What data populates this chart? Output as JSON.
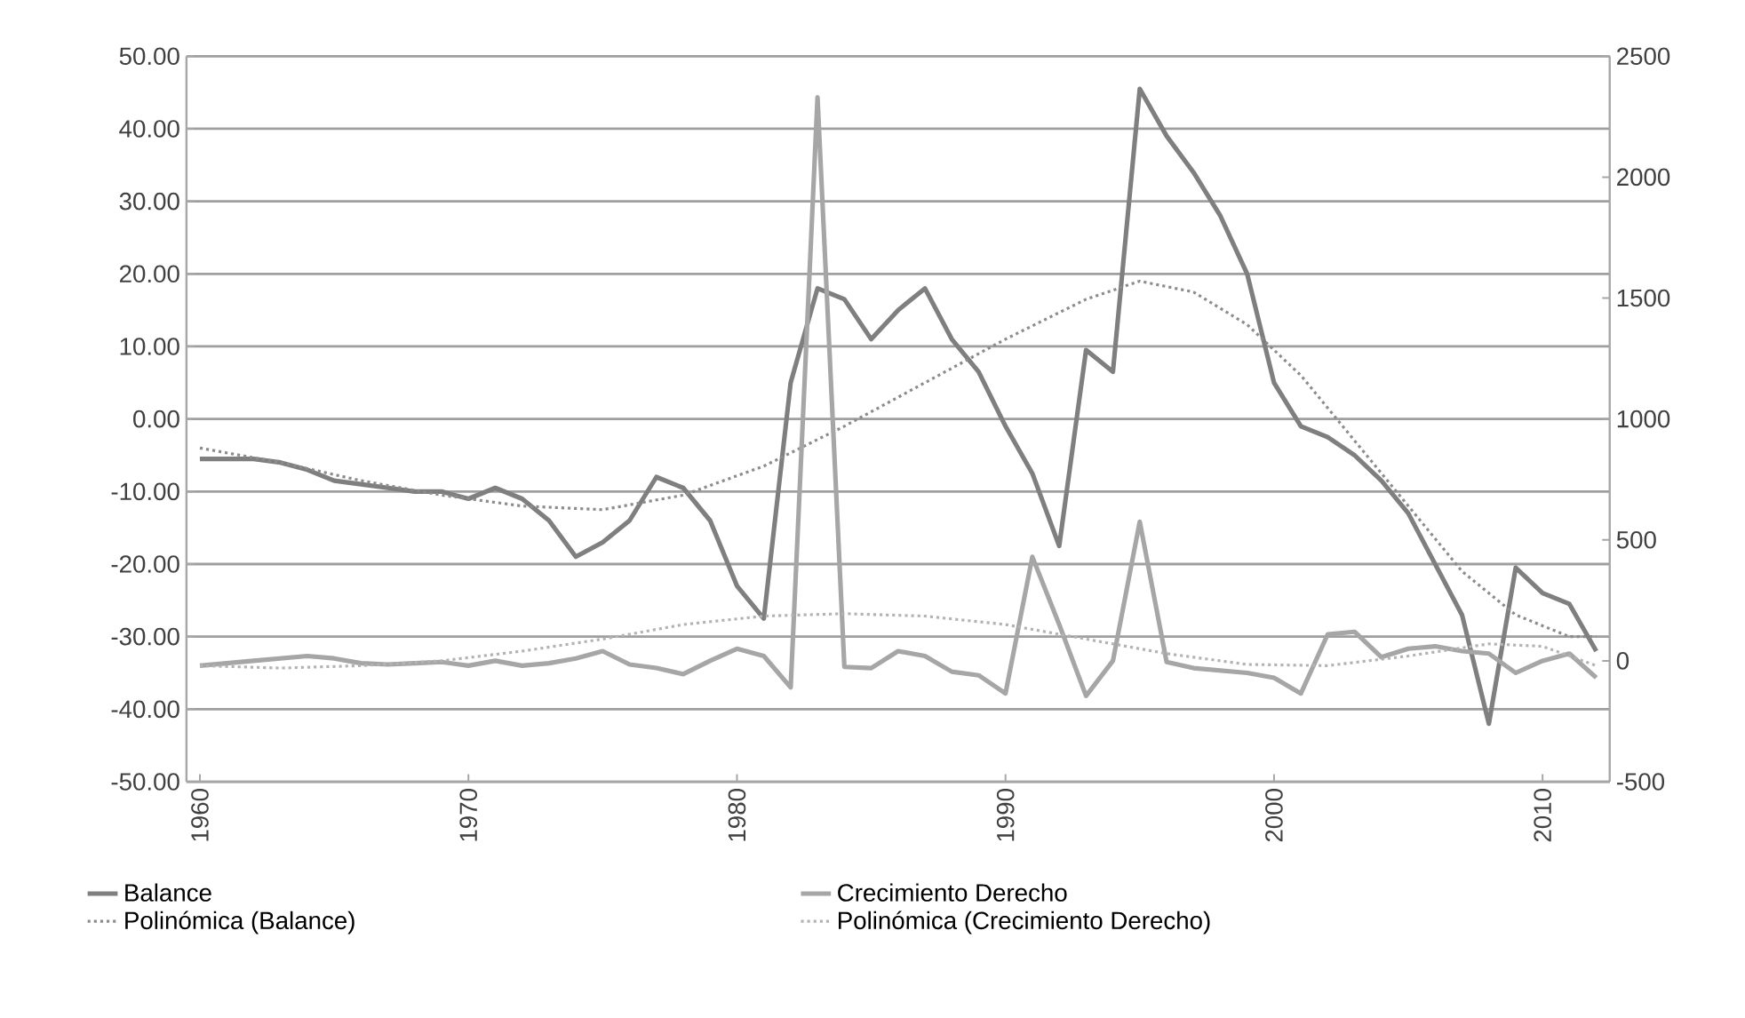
{
  "chart_data": {
    "type": "line",
    "x": [
      1960,
      1961,
      1962,
      1963,
      1964,
      1965,
      1966,
      1967,
      1968,
      1969,
      1970,
      1971,
      1972,
      1973,
      1974,
      1975,
      1976,
      1977,
      1978,
      1979,
      1980,
      1981,
      1982,
      1983,
      1984,
      1985,
      1986,
      1987,
      1988,
      1989,
      1990,
      1991,
      1992,
      1993,
      1994,
      1995,
      1996,
      1997,
      1998,
      1999,
      2000,
      2001,
      2002,
      2003,
      2004,
      2005,
      2006,
      2007,
      2008,
      2009,
      2010,
      2011,
      2012
    ],
    "xlim": [
      1959.5,
      2012.5
    ],
    "xticks": [
      1960,
      1970,
      1980,
      1990,
      2000,
      2010
    ],
    "ylim": [
      -50,
      50
    ],
    "yticks": [
      {
        "value": -50,
        "label": "-50.00"
      },
      {
        "value": -40,
        "label": "-40.00"
      },
      {
        "value": -30,
        "label": "-30.00"
      },
      {
        "value": -20,
        "label": "-20.00"
      },
      {
        "value": -10,
        "label": "-10.00"
      },
      {
        "value": 0,
        "label": "0.00"
      },
      {
        "value": 10,
        "label": "10.00"
      },
      {
        "value": 20,
        "label": "20.00"
      },
      {
        "value": 30,
        "label": "30.00"
      },
      {
        "value": 40,
        "label": "40.00"
      },
      {
        "value": 50,
        "label": "50.00"
      }
    ],
    "y2lim": [
      -500,
      2500
    ],
    "y2ticks": [
      -500,
      0,
      500,
      1000,
      1500,
      2000,
      2500
    ],
    "grid": "y",
    "legend": "bottom",
    "marker": "none",
    "series": [
      {
        "name": "Balance",
        "color": "#7f7f7f",
        "line_style": "solid",
        "values": [
          -5.5,
          -5.5,
          -5.5,
          -6,
          -7,
          -8.5,
          -9,
          -9.5,
          -10,
          -10,
          -11,
          -9.5,
          -11,
          -14,
          -19,
          -17,
          -14,
          -8,
          -9.5,
          -14,
          -23,
          -27.5,
          5,
          18,
          16.5,
          11,
          15,
          18,
          11,
          6.5,
          -1,
          -7.5,
          -17.5,
          9.5,
          6.5,
          45.5,
          39,
          34,
          28,
          20,
          5,
          -1,
          -2.5,
          -5,
          -8.5,
          -13,
          -20,
          -27,
          -42,
          -20.5,
          -24,
          -25.5,
          -32
        ]
      },
      {
        "name": "Crecimiento Derecho",
        "color": "#a6a6a6",
        "axis": "y2",
        "line_style": "solid",
        "values": [
          -20,
          -10,
          0,
          10,
          20,
          10,
          -10,
          -15,
          -10,
          -5,
          -20,
          0,
          -20,
          -10,
          10,
          40,
          -15,
          -30,
          -55,
          0,
          50,
          20,
          -110,
          2330,
          -25,
          -30,
          40,
          20,
          -45,
          -60,
          -135,
          430,
          150,
          -145,
          0,
          575,
          -5,
          -30,
          -40,
          -50,
          -70,
          -135,
          110,
          120,
          15,
          50,
          60,
          40,
          30,
          -50,
          0,
          30,
          -70
        ]
      },
      {
        "name": "Polinómica (Balance)",
        "color": "#8c8c8c",
        "line_style": "dotted",
        "x": [
          1960,
          1963,
          1966,
          1969,
          1972,
          1975,
          1978,
          1981,
          1984,
          1987,
          1990,
          1993,
          1995,
          1997,
          1999,
          2001,
          2003,
          2005,
          2007,
          2009,
          2011,
          2012
        ],
        "values": [
          -4,
          -6,
          -8.5,
          -10.5,
          -12,
          -12.5,
          -10.5,
          -6.5,
          -1,
          5,
          11,
          16.5,
          19,
          17.5,
          13,
          6,
          -3,
          -12,
          -21,
          -27,
          -30,
          -30
        ]
      },
      {
        "name": "Polinómica (Crecimiento Derecho)",
        "color": "#b3b3b3",
        "axis": "y2",
        "line_style": "dotted",
        "x": [
          1960,
          1963,
          1966,
          1969,
          1972,
          1975,
          1978,
          1981,
          1984,
          1987,
          1990,
          1993,
          1996,
          1999,
          2002,
          2005,
          2008,
          2010,
          2012
        ],
        "values": [
          -20,
          -30,
          -20,
          0,
          40,
          90,
          150,
          185,
          195,
          185,
          150,
          90,
          30,
          -15,
          -20,
          20,
          70,
          60,
          -20
        ]
      }
    ]
  }
}
